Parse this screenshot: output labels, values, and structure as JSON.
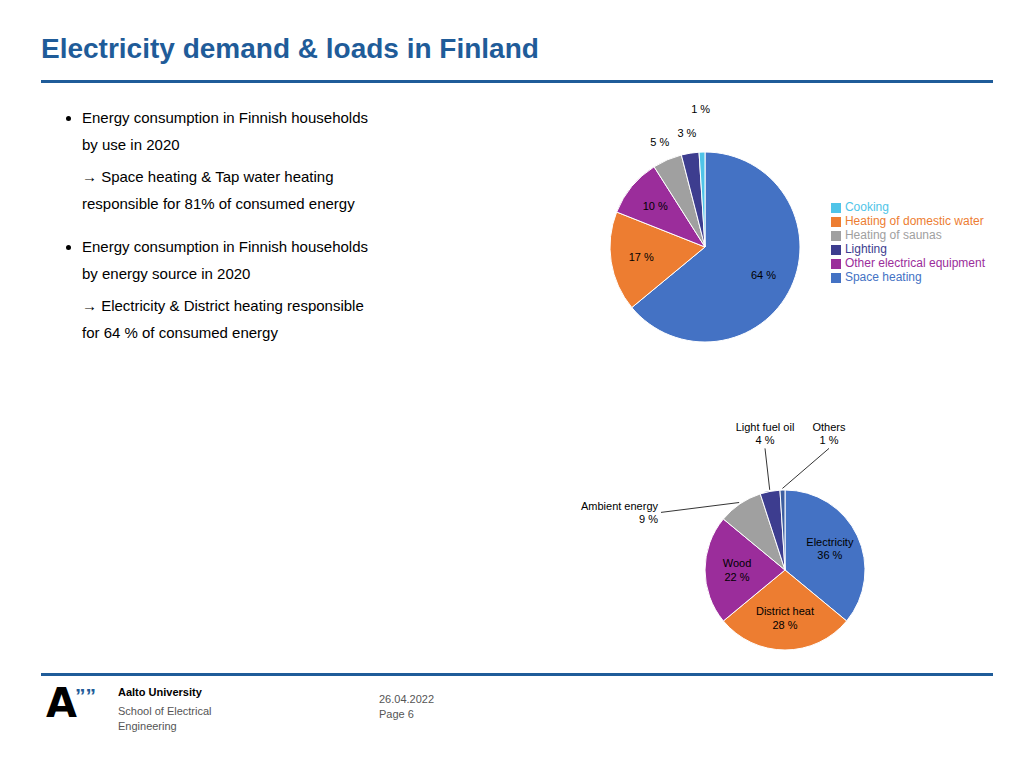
{
  "title": "Electricity demand & loads in Finland",
  "color": "#1F5C99",
  "annotations": [
    "Energy consumption in Finnish households",
    "by use in 2020",
    "→ Space heating & Tap water heating",
    "responsible for 81% of consumed energy",
    "Energy consumption in Finnish households",
    "by energy source in 2020",
    "→ Electricity & District heating responsible",
    "for 64 % of consumed energy",
    "A",
    "””",
    "Aalto University",
    "School of Electrical\nEngineering",
    "26.04.2022",
    "Page 6"
  ],
  "chart_data": [
    {
      "type": "pie",
      "categories": [
        "Space heating",
        "Heating of domestic water",
        "Other electrical equipment",
        "Heating of saunas",
        "Lighting",
        "Cooking"
      ],
      "values": [
        64,
        17,
        10,
        5,
        3,
        1
      ],
      "value_labels": [
        "64 %",
        "17 %",
        "10 %",
        "5 %",
        "3 %",
        "1 %"
      ],
      "colors": [
        "#4472C4",
        "#ED7D31",
        "#9B2D9B",
        "#A0A0A0",
        "#3D3D8F",
        "#4FC4E8"
      ],
      "data_labels": true,
      "legend": "right"
    },
    {
      "type": "pie",
      "categories": [
        "Electricity",
        "District heat",
        "Wood",
        "Ambient energy",
        "Light fuel oil",
        "Others"
      ],
      "values": [
        36,
        28,
        22,
        9,
        4,
        1
      ],
      "value_labels": [
        "36 %",
        "28 %",
        "22 %",
        "9 %",
        "4 %",
        "1 %"
      ],
      "colors": [
        "#4472C4",
        "#ED7D31",
        "#9B2D9B",
        "#A0A0A0",
        "#3D3D8F",
        "#3D5FA0"
      ],
      "data_labels": true
    }
  ]
}
